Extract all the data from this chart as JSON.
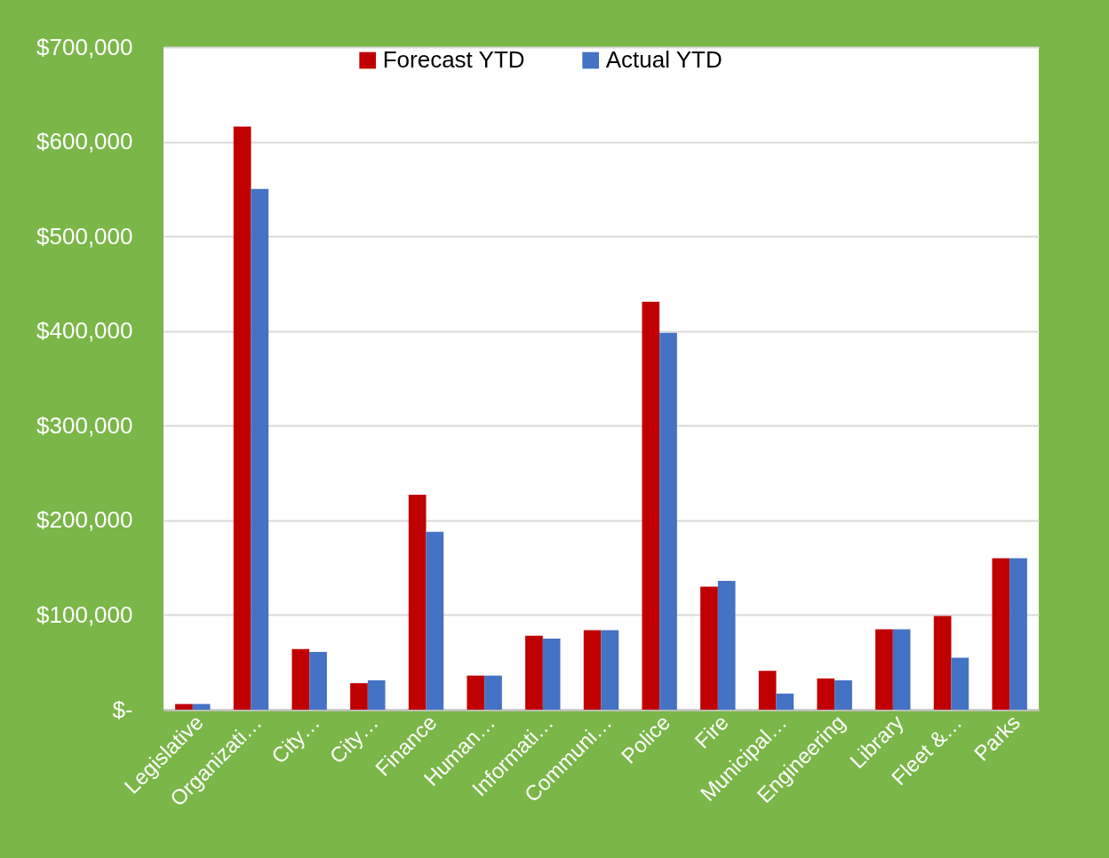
{
  "chart_data": {
    "type": "bar",
    "categories": [
      "Legislative",
      "Organizati…",
      "City…",
      "City…",
      "Finance",
      "Human…",
      "Informati…",
      "Communi…",
      "Police",
      "Fire",
      "Municipal…",
      "Engineering",
      "Library",
      "Fleet &…",
      "Parks"
    ],
    "series": [
      {
        "name": "Forecast YTD",
        "color": "#c00000",
        "values": [
          6000,
          616000,
          64000,
          28000,
          227000,
          36000,
          78000,
          84000,
          431000,
          130000,
          41000,
          33000,
          85000,
          99000,
          160000
        ]
      },
      {
        "name": "Actual YTD",
        "color": "#4472c4",
        "values": [
          6000,
          550000,
          61000,
          31000,
          188000,
          36000,
          75000,
          84000,
          398000,
          136000,
          17000,
          31000,
          85000,
          55000,
          160000
        ]
      }
    ],
    "ylim": [
      0,
      700000
    ],
    "yticks": [
      {
        "value": 0,
        "label": "$-"
      },
      {
        "value": 100000,
        "label": "$100,000"
      },
      {
        "value": 200000,
        "label": "$200,000"
      },
      {
        "value": 300000,
        "label": "$300,000"
      },
      {
        "value": 400000,
        "label": "$400,000"
      },
      {
        "value": 500000,
        "label": "$500,000"
      },
      {
        "value": 600000,
        "label": "$600,000"
      },
      {
        "value": 700000,
        "label": "$700,000"
      }
    ],
    "grid": "y",
    "legend": "top"
  }
}
